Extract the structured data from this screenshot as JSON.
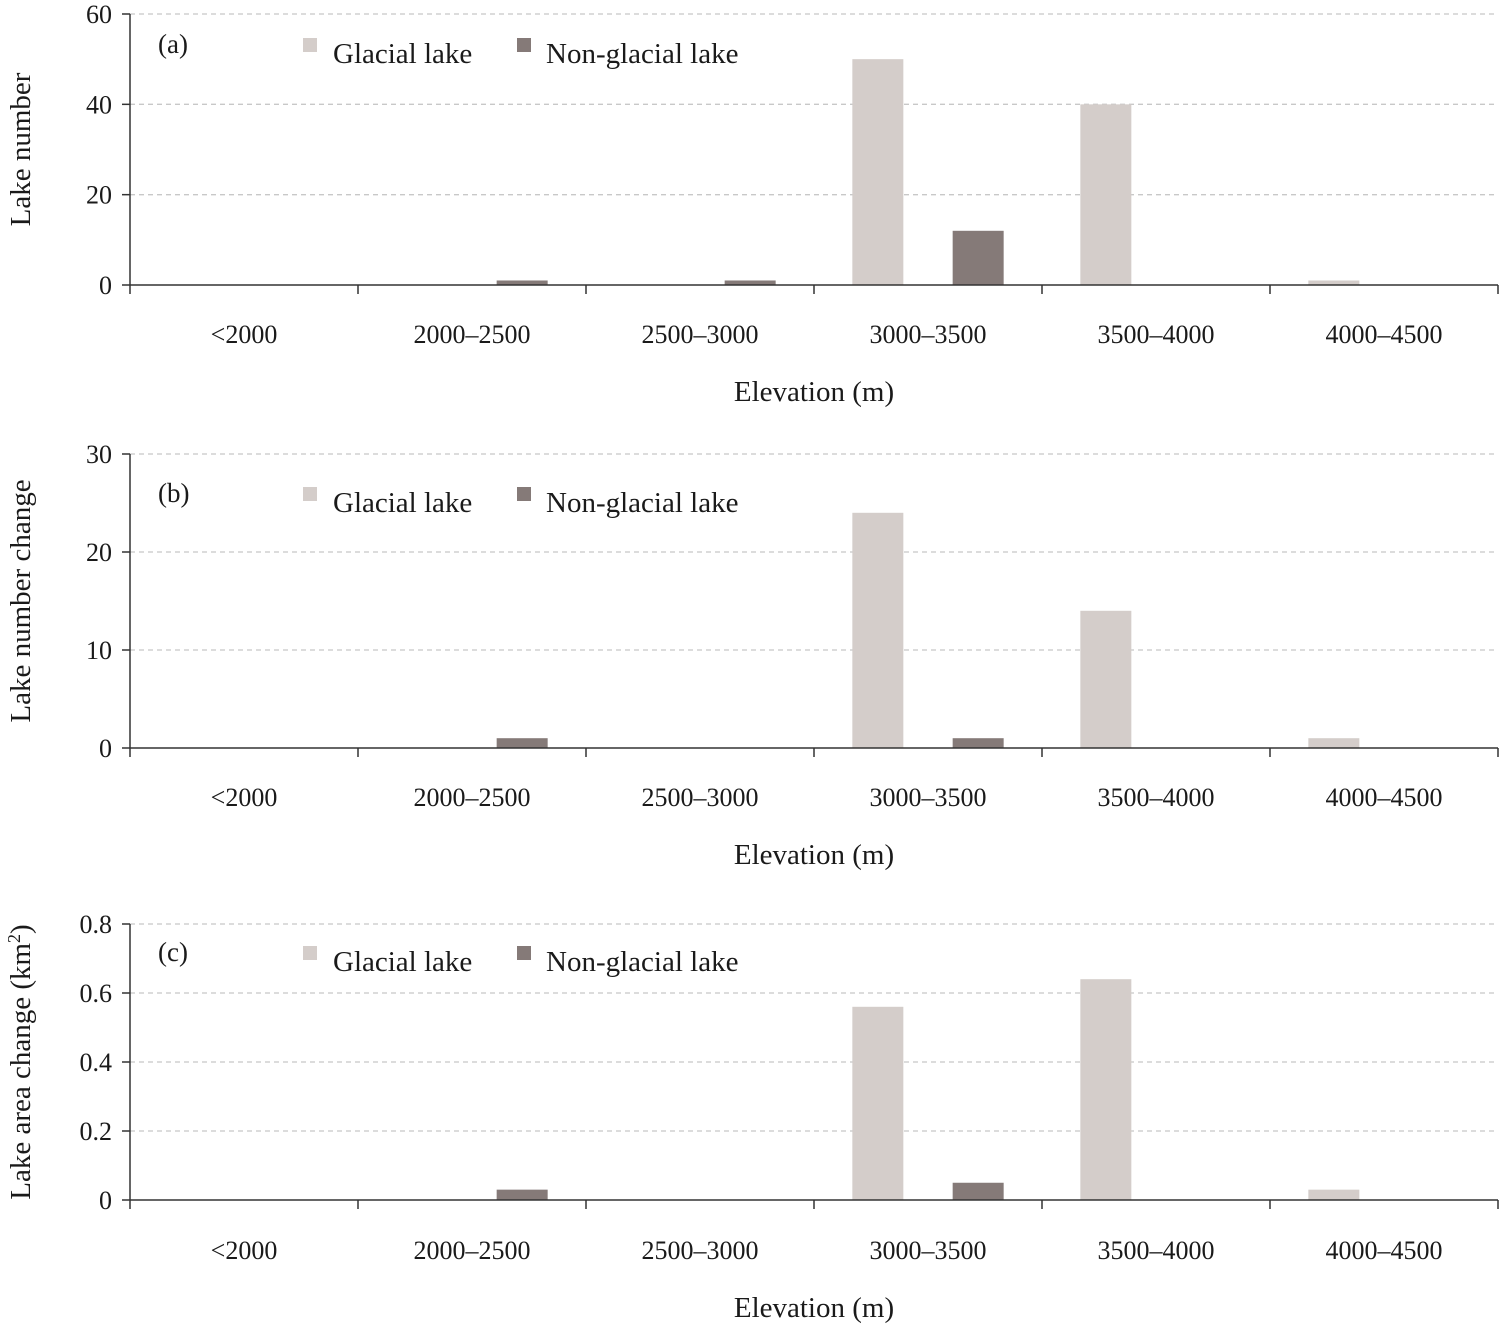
{
  "colors": {
    "glacial": "#d4cdca",
    "non_glacial": "#857a78",
    "axis": "#333333",
    "grid": "#c8c8c8"
  },
  "chart_data": [
    {
      "type": "bar",
      "panel_label": "(a)",
      "categories": [
        "<2000",
        "2000–2500",
        "2500–3000",
        "3000–3500",
        "3500–4000",
        "4000–4500"
      ],
      "series": [
        {
          "name": "Glacial lake",
          "values": [
            0,
            0,
            0,
            50,
            40,
            1
          ]
        },
        {
          "name": "Non-glacial lake",
          "values": [
            0,
            1,
            1,
            12,
            0,
            0
          ]
        }
      ],
      "xlabel": "Elevation (m)",
      "ylabel": "Lake number",
      "ylim": [
        0,
        60
      ],
      "yticks": [
        "0",
        "20",
        "40",
        "60"
      ],
      "grid": true,
      "legend_position": "top-left"
    },
    {
      "type": "bar",
      "panel_label": "(b)",
      "categories": [
        "<2000",
        "2000–2500",
        "2500–3000",
        "3000–3500",
        "3500–4000",
        "4000–4500"
      ],
      "series": [
        {
          "name": "Glacial lake",
          "values": [
            0,
            0,
            0,
            24,
            14,
            1
          ]
        },
        {
          "name": "Non-glacial lake",
          "values": [
            0,
            1,
            0,
            1,
            0,
            0
          ]
        }
      ],
      "xlabel": "Elevation (m)",
      "ylabel": "Lake number change",
      "ylim": [
        0,
        30
      ],
      "yticks": [
        "0",
        "10",
        "20",
        "30"
      ],
      "grid": true,
      "legend_position": "top-left"
    },
    {
      "type": "bar",
      "panel_label": "(c)",
      "categories": [
        "<2000",
        "2000–2500",
        "2500–3000",
        "3000–3500",
        "3500–4000",
        "4000–4500"
      ],
      "series": [
        {
          "name": "Glacial lake",
          "values": [
            0,
            0,
            0,
            0.56,
            0.64,
            0.03
          ]
        },
        {
          "name": "Non-glacial lake",
          "values": [
            0,
            0.03,
            0,
            0.05,
            0,
            0
          ]
        }
      ],
      "xlabel": "Elevation (m)",
      "ylabel": "Lake area change (km",
      "ylabel_superscript": "2",
      "ylabel_suffix": ")",
      "ylim": [
        0,
        0.8
      ],
      "yticks": [
        "0",
        "0.2",
        "0.4",
        "0.6",
        "0.8"
      ],
      "grid": true,
      "legend_position": "top-left"
    }
  ]
}
